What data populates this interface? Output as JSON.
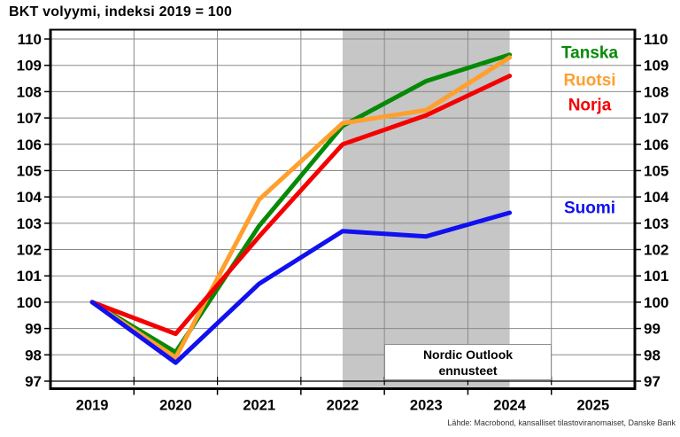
{
  "source_note": "Lähde: Macrobond, kansalliset tilastoviranomaiset, Danske Bank",
  "chart_data": {
    "type": "line",
    "title": "BKT volyymi, indeksi 2019 = 100",
    "x": [
      2019,
      2020,
      2021,
      2022,
      2023,
      2024
    ],
    "x_axis_labels": [
      "2019",
      "2020",
      "2021",
      "2022",
      "2023",
      "2024",
      "2025"
    ],
    "y_ticks": [
      97,
      98,
      99,
      100,
      101,
      102,
      103,
      104,
      105,
      106,
      107,
      108,
      109,
      110
    ],
    "ylim": [
      97,
      110
    ],
    "grid": true,
    "legend_position": "right-inside",
    "series": [
      {
        "name": "Tanska",
        "color": "#068a06",
        "values": [
          100,
          98.1,
          102.9,
          106.7,
          108.4,
          109.4
        ],
        "label_y": 109.5
      },
      {
        "name": "Ruotsi",
        "color": "#ff9f2e",
        "values": [
          100,
          97.9,
          103.9,
          106.8,
          107.3,
          109.3
        ],
        "label_y": 108.45
      },
      {
        "name": "Norja",
        "color": "#f50000",
        "values": [
          100,
          98.8,
          102.5,
          106.0,
          107.1,
          108.6
        ],
        "label_y": 107.5
      },
      {
        "name": "Suomi",
        "color": "#1010f0",
        "values": [
          100,
          97.7,
          100.7,
          102.7,
          102.5,
          103.4
        ],
        "label_y": 103.6
      }
    ],
    "forecast_band": {
      "x_start": 2022.5,
      "x_end": 2024.5,
      "fill": "#c6c6c6",
      "label_line1": "Nordic Outlook",
      "label_line2": "ennusteet"
    }
  }
}
